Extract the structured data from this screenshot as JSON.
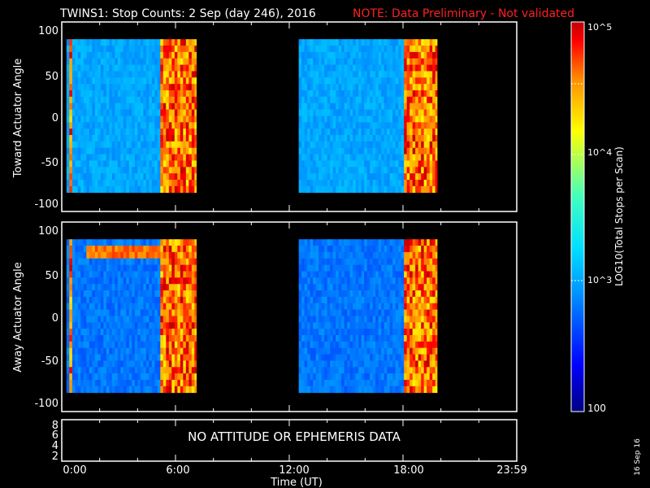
{
  "header": {
    "title": "TWINS1: Stop Counts:  2 Sep (day 246), 2016",
    "note": "NOTE: Data Preliminary - Not validated"
  },
  "x_axis": {
    "label": "Time (UT)",
    "ticks": [
      "0:00",
      "6:00",
      "12:00",
      "18:00",
      "23:59"
    ]
  },
  "panels": {
    "toward": {
      "ylabel": "Toward Actuator Angle",
      "yticks": [
        "100",
        "50",
        "0",
        "-50",
        "-100"
      ]
    },
    "away": {
      "ylabel": "Away Actuator Angle",
      "yticks": [
        "100",
        "50",
        "0",
        "-50",
        "-100"
      ]
    },
    "attitude": {
      "message": "NO ATTITUDE OR EPHEMERIS DATA",
      "yticks": [
        "8",
        "6",
        "4",
        "2"
      ]
    }
  },
  "colorbar": {
    "label": "LOG10(Total Stops per Scan)",
    "ticks": [
      "10^5",
      "10^4",
      "10^3",
      "100"
    ],
    "colors": [
      "#000080",
      "#0000ff",
      "#0090ff",
      "#00e0ff",
      "#40ffc0",
      "#ffff00",
      "#ff9000",
      "#ff0000",
      "#c00000"
    ]
  },
  "date_stamp": "16 Sep 16",
  "chart_data": [
    {
      "type": "heatmap",
      "title": "Toward Actuator Angle",
      "x_unit": "hours UT",
      "xlim": [
        0,
        24
      ],
      "ylim": [
        -110,
        110
      ],
      "y_range_data": [
        -88,
        90
      ],
      "data_intervals_hours": [
        [
          0.25,
          7.1
        ],
        [
          12.5,
          19.8
        ]
      ],
      "value_scale": "log10 counts, 100 to 100000",
      "typical_log10_value": 3.0,
      "high_count_bands_hours": [
        [
          0.3,
          0.5
        ],
        [
          5.2,
          7.1
        ],
        [
          17.9,
          19.8
        ]
      ]
    },
    {
      "type": "heatmap",
      "title": "Away Actuator Angle",
      "x_unit": "hours UT",
      "xlim": [
        0,
        24
      ],
      "ylim": [
        -110,
        110
      ],
      "y_range_data": [
        -88,
        90
      ],
      "data_intervals_hours": [
        [
          0.25,
          7.1
        ],
        [
          12.5,
          19.8
        ]
      ],
      "value_scale": "log10 counts, 100 to 100000",
      "typical_log10_value": 2.8,
      "high_count_bands_hours": [
        [
          0.3,
          0.5
        ],
        [
          5.2,
          7.1
        ],
        [
          17.9,
          19.8
        ]
      ],
      "enhancement_feature": {
        "time_hours": [
          1.2,
          5.8
        ],
        "angle_deg": [
          65,
          80
        ],
        "log10_value": 4.6
      }
    }
  ]
}
